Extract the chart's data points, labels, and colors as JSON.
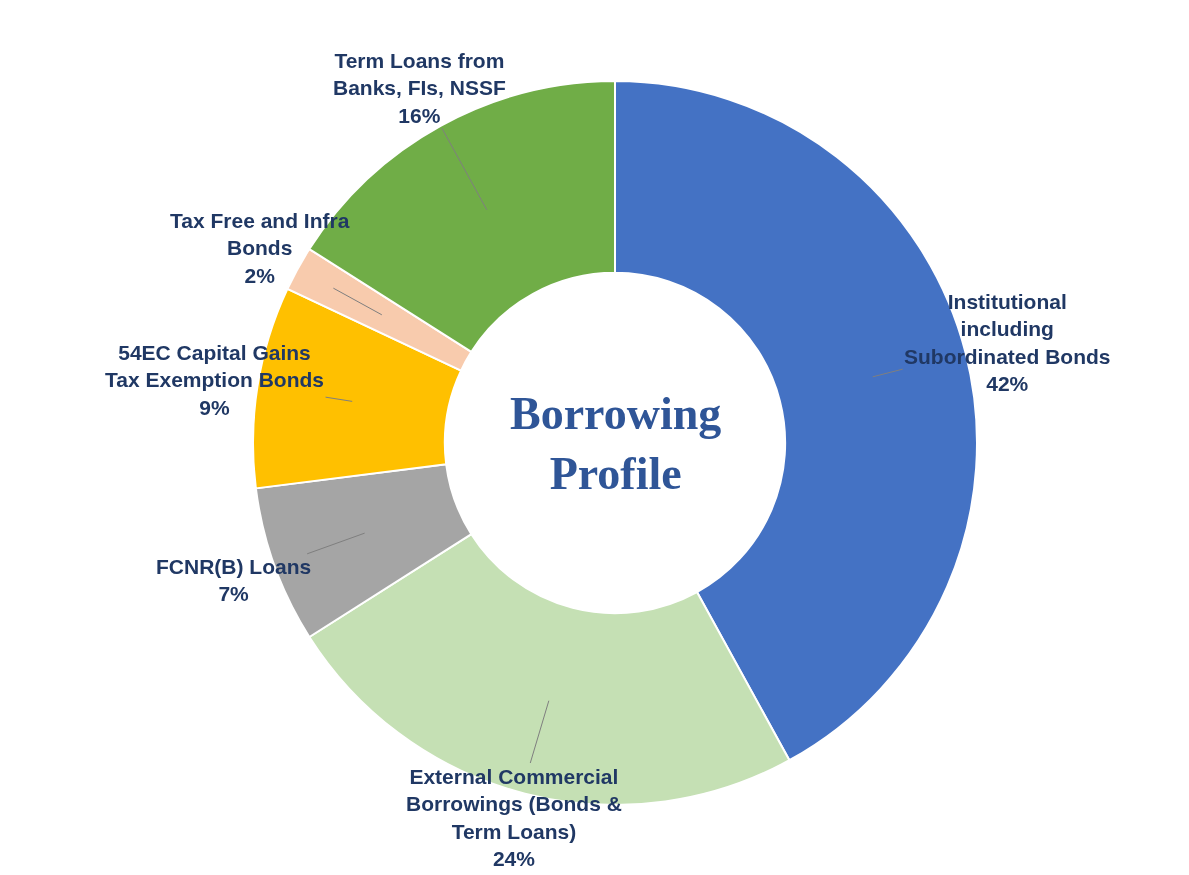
{
  "chart_data": {
    "type": "donut",
    "title": "Borrowing Profile",
    "categories": [
      "Institutional including Subordinated Bonds",
      "External Commercial Borrowings (Bonds & Term Loans)",
      "FCNR(B) Loans",
      "54EC Capital Gains Tax Exemption Bonds",
      "Tax Free and Infra Bonds",
      "Term Loans from Banks, FIs, NSSF"
    ],
    "values": [
      42,
      24,
      7,
      9,
      2,
      16
    ],
    "value_labels": [
      "42%",
      "24%",
      "7%",
      "9%",
      "2%",
      "16%"
    ],
    "colors": [
      "#4472c4",
      "#c5e0b4",
      "#a5a5a5",
      "#ffc000",
      "#f8cbad",
      "#70ad47"
    ],
    "legend": false
  }
}
